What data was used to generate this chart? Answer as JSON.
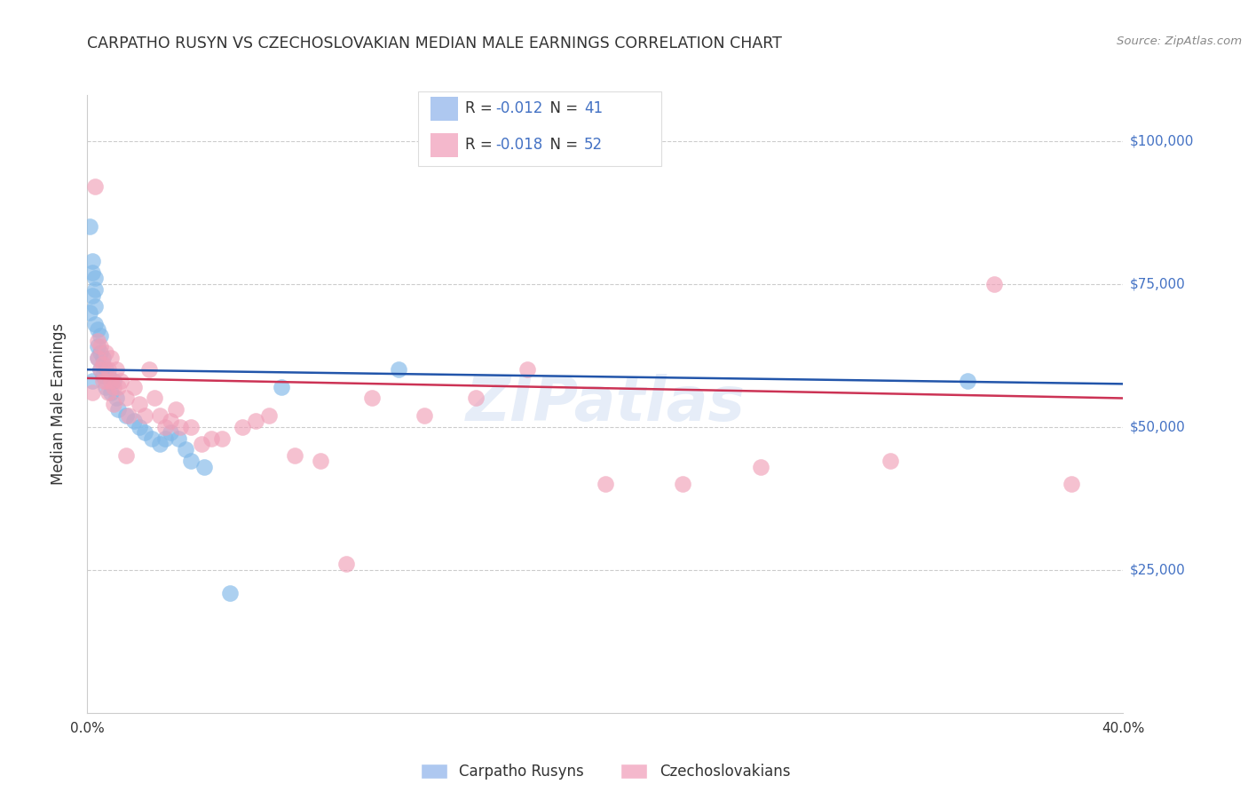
{
  "title": "CARPATHO RUSYN VS CZECHOSLOVAKIAN MEDIAN MALE EARNINGS CORRELATION CHART",
  "source": "Source: ZipAtlas.com",
  "ylabel": "Median Male Earnings",
  "right_yticks": [
    "$100,000",
    "$75,000",
    "$50,000",
    "$25,000"
  ],
  "right_ytick_vals": [
    100000,
    75000,
    50000,
    25000
  ],
  "legend_sublabels": [
    "Carpatho Rusyns",
    "Czechoslovakians"
  ],
  "watermark": "ZIPatlas",
  "blue_scatter": {
    "x": [
      0.001,
      0.001,
      0.002,
      0.002,
      0.002,
      0.003,
      0.003,
      0.003,
      0.003,
      0.004,
      0.004,
      0.004,
      0.005,
      0.005,
      0.005,
      0.006,
      0.006,
      0.007,
      0.007,
      0.008,
      0.009,
      0.01,
      0.011,
      0.012,
      0.015,
      0.018,
      0.02,
      0.022,
      0.025,
      0.028,
      0.03,
      0.032,
      0.035,
      0.038,
      0.04,
      0.045,
      0.055,
      0.075,
      0.12,
      0.34,
      0.002
    ],
    "y": [
      85000,
      70000,
      79000,
      77000,
      73000,
      76000,
      74000,
      71000,
      68000,
      67000,
      64000,
      62000,
      66000,
      63000,
      60000,
      62000,
      59000,
      60000,
      57000,
      59000,
      56000,
      58000,
      55000,
      53000,
      52000,
      51000,
      50000,
      49000,
      48000,
      47000,
      48000,
      49000,
      48000,
      46000,
      44000,
      43000,
      21000,
      57000,
      60000,
      58000,
      58000
    ]
  },
  "pink_scatter": {
    "x": [
      0.003,
      0.004,
      0.004,
      0.005,
      0.005,
      0.006,
      0.006,
      0.007,
      0.007,
      0.008,
      0.008,
      0.009,
      0.009,
      0.01,
      0.01,
      0.011,
      0.012,
      0.013,
      0.015,
      0.016,
      0.018,
      0.02,
      0.022,
      0.024,
      0.026,
      0.028,
      0.03,
      0.032,
      0.034,
      0.036,
      0.04,
      0.044,
      0.048,
      0.052,
      0.06,
      0.065,
      0.07,
      0.08,
      0.09,
      0.1,
      0.11,
      0.13,
      0.15,
      0.17,
      0.2,
      0.23,
      0.26,
      0.31,
      0.35,
      0.38,
      0.002,
      0.015
    ],
    "y": [
      92000,
      65000,
      62000,
      64000,
      60000,
      61000,
      58000,
      63000,
      58000,
      60000,
      56000,
      62000,
      58000,
      57000,
      54000,
      60000,
      57000,
      58000,
      55000,
      52000,
      57000,
      54000,
      52000,
      60000,
      55000,
      52000,
      50000,
      51000,
      53000,
      50000,
      50000,
      47000,
      48000,
      48000,
      50000,
      51000,
      52000,
      45000,
      44000,
      26000,
      55000,
      52000,
      55000,
      60000,
      40000,
      40000,
      43000,
      44000,
      75000,
      40000,
      56000,
      45000
    ]
  },
  "blue_line": {
    "x": [
      0.0,
      0.4
    ],
    "y": [
      60000,
      57500
    ]
  },
  "pink_line": {
    "x": [
      0.0,
      0.4
    ],
    "y": [
      58500,
      55000
    ]
  },
  "xlim": [
    0.0,
    0.4
  ],
  "ylim": [
    0,
    108000
  ],
  "grid_vals": [
    25000,
    50000,
    75000,
    100000
  ],
  "xtick_positions": [
    0.0,
    0.05,
    0.1,
    0.15,
    0.2,
    0.25,
    0.3,
    0.35,
    0.4
  ],
  "xtick_labels": [
    "0.0%",
    "",
    "",
    "",
    "",
    "",
    "",
    "",
    "40.0%"
  ],
  "background_color": "#ffffff",
  "blue_dot_color": "#80b8e8",
  "pink_dot_color": "#f0a0b8",
  "blue_line_color": "#2255aa",
  "pink_line_color": "#cc3355",
  "legend_blue_fill": "#aec8f0",
  "legend_pink_fill": "#f4b8cc",
  "legend_border_color": "#dddddd",
  "r_blue": "-0.012",
  "n_blue": "41",
  "r_pink": "-0.018",
  "n_pink": "52",
  "text_dark": "#333333",
  "text_blue": "#4472c4",
  "text_gray": "#888888"
}
